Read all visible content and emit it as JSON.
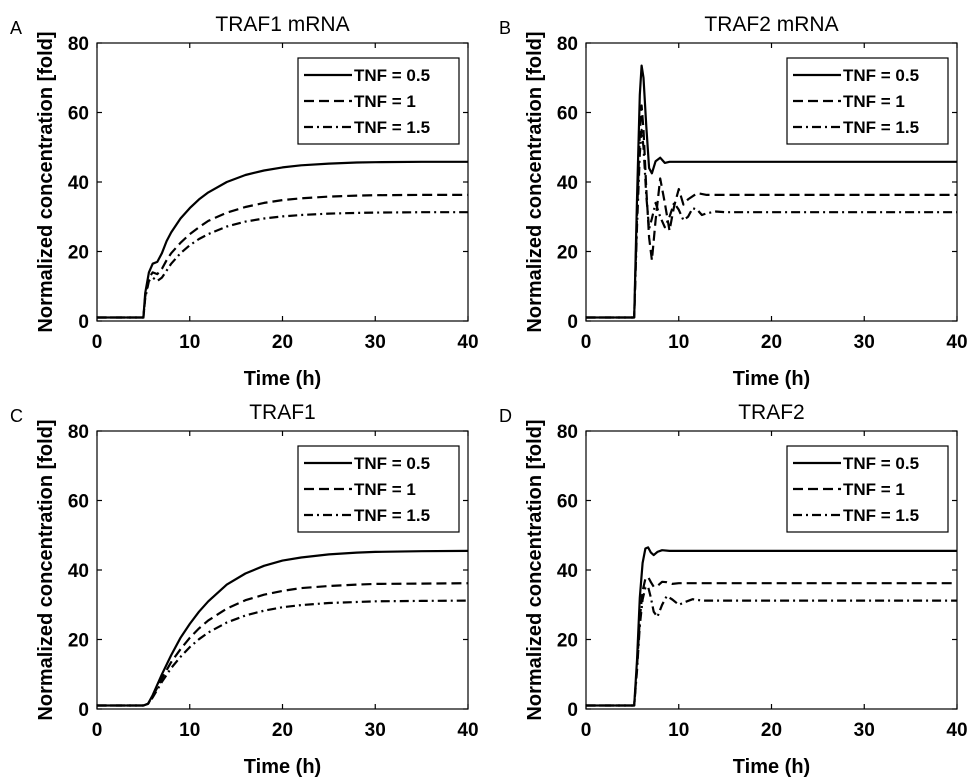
{
  "chart_data": [
    {
      "panel": "A",
      "title": "TRAF1 mRNA",
      "type": "line",
      "xlabel": "Time (h)",
      "ylabel": "Normalized concentration [fold]",
      "xlim": [
        0,
        40
      ],
      "ylim": [
        0,
        80
      ],
      "xticks": [
        "0",
        "10",
        "20",
        "30",
        "40"
      ],
      "yticks": [
        "0",
        "20",
        "40",
        "60",
        "80"
      ],
      "grid": false,
      "legend_position": "top-right",
      "series": [
        {
          "name": "TNF = 0.5",
          "style": "solid",
          "x": [
            0,
            5,
            5.2,
            5.6,
            6.0,
            6.5,
            7.0,
            7.5,
            8,
            9,
            10,
            11,
            12,
            14,
            16,
            18,
            20,
            22,
            25,
            28,
            30,
            35,
            40
          ],
          "y": [
            1,
            1,
            8,
            14,
            16.5,
            17,
            19.5,
            23,
            25.5,
            29.5,
            32.5,
            35,
            37,
            40,
            42,
            43.3,
            44.2,
            44.8,
            45.3,
            45.6,
            45.7,
            45.8,
            45.8
          ]
        },
        {
          "name": "TNF = 1",
          "style": "dashed",
          "x": [
            0,
            5,
            5.2,
            5.6,
            6.0,
            6.5,
            7.0,
            7.5,
            8,
            9,
            10,
            11,
            12,
            14,
            16,
            18,
            20,
            22,
            25,
            28,
            30,
            35,
            40
          ],
          "y": [
            1,
            1,
            7,
            12.5,
            14,
            13.5,
            15,
            17.5,
            19.5,
            22.5,
            25,
            27,
            28.8,
            31.2,
            32.8,
            34,
            34.8,
            35.3,
            35.8,
            36.1,
            36.2,
            36.3,
            36.3
          ]
        },
        {
          "name": "TNF = 1.5",
          "style": "dashdot",
          "x": [
            0,
            5,
            5.2,
            5.6,
            6.0,
            6.5,
            7.0,
            7.5,
            8,
            9,
            10,
            11,
            12,
            14,
            16,
            18,
            20,
            22,
            25,
            28,
            30,
            35,
            40
          ],
          "y": [
            1,
            1,
            6.5,
            11.5,
            12.5,
            11.5,
            12.5,
            14.5,
            16.5,
            19.5,
            21.8,
            23.6,
            25,
            27.2,
            28.6,
            29.5,
            30.1,
            30.5,
            30.9,
            31.1,
            31.2,
            31.3,
            31.3
          ]
        }
      ]
    },
    {
      "panel": "B",
      "title": "TRAF2 mRNA",
      "type": "line",
      "xlabel": "Time (h)",
      "ylabel": "Normalized concentration [fold]",
      "xlim": [
        0,
        40
      ],
      "ylim": [
        0,
        80
      ],
      "xticks": [
        "0",
        "10",
        "20",
        "30",
        "40"
      ],
      "yticks": [
        "0",
        "20",
        "40",
        "60",
        "80"
      ],
      "grid": false,
      "legend_position": "top-right",
      "series": [
        {
          "name": "TNF = 0.5",
          "style": "solid",
          "x": [
            0,
            5.2,
            5.5,
            5.8,
            6.0,
            6.2,
            6.5,
            6.8,
            7.1,
            7.5,
            8,
            8.5,
            9,
            10,
            40
          ],
          "y": [
            1,
            1,
            35,
            65,
            73.5,
            70,
            56,
            44,
            42.5,
            46,
            47,
            45.5,
            45.8,
            45.8,
            45.8
          ]
        },
        {
          "name": "TNF = 1",
          "style": "dashed",
          "x": [
            0,
            5.2,
            5.5,
            5.8,
            6.0,
            6.2,
            6.5,
            6.8,
            7.1,
            7.5,
            8,
            8.5,
            9,
            9.5,
            10,
            10.5,
            11,
            12,
            13,
            40
          ],
          "y": [
            1,
            1,
            30,
            54,
            62,
            55,
            38,
            24,
            17.5,
            29,
            41,
            34,
            26,
            33,
            38,
            33.5,
            35,
            36.8,
            36.3,
            36.3
          ]
        },
        {
          "name": "TNF = 1.5",
          "style": "dashdot",
          "x": [
            0,
            5.2,
            5.5,
            5.8,
            6.0,
            6.2,
            6.5,
            6.8,
            7.1,
            7.5,
            8,
            8.5,
            9,
            9.5,
            10,
            10.5,
            11,
            11.5,
            12,
            12.5,
            13,
            14,
            15,
            40
          ],
          "y": [
            1,
            1,
            27,
            48,
            55,
            50,
            36,
            26.5,
            29.5,
            34,
            30,
            27,
            30,
            34,
            32,
            29,
            30,
            32.5,
            32,
            30.5,
            31,
            31.5,
            31.3,
            31.3
          ]
        }
      ]
    },
    {
      "panel": "C",
      "title": "TRAF1",
      "type": "line",
      "xlabel": "Time (h)",
      "ylabel": "Normalized concentration [fold]",
      "xlim": [
        0,
        40
      ],
      "ylim": [
        0,
        80
      ],
      "xticks": [
        "0",
        "10",
        "20",
        "30",
        "40"
      ],
      "yticks": [
        "0",
        "20",
        "40",
        "60",
        "80"
      ],
      "grid": false,
      "legend_position": "top-right",
      "series": [
        {
          "name": "TNF = 0.5",
          "style": "solid",
          "x": [
            0,
            5,
            5.5,
            6,
            7,
            8,
            9,
            10,
            11,
            12,
            14,
            16,
            18,
            20,
            22,
            25,
            28,
            30,
            35,
            40
          ],
          "y": [
            1,
            1,
            1.5,
            4,
            10,
            15.5,
            20.5,
            24.5,
            28,
            31,
            35.8,
            39,
            41.2,
            42.7,
            43.6,
            44.5,
            45,
            45.2,
            45.4,
            45.5
          ]
        },
        {
          "name": "TNF = 1",
          "style": "dashed",
          "x": [
            0,
            5,
            5.5,
            6,
            7,
            8,
            9,
            10,
            11,
            12,
            14,
            16,
            18,
            20,
            22,
            25,
            28,
            30,
            35,
            40
          ],
          "y": [
            1,
            1,
            1.5,
            3.6,
            8.8,
            13.5,
            17.2,
            20.5,
            23.2,
            25.5,
            28.9,
            31.3,
            32.9,
            34,
            34.8,
            35.4,
            35.8,
            36,
            36.1,
            36.2
          ]
        },
        {
          "name": "TNF = 1.5",
          "style": "dashdot",
          "x": [
            0,
            5,
            5.5,
            6,
            7,
            8,
            9,
            10,
            11,
            12,
            14,
            16,
            18,
            20,
            22,
            25,
            28,
            30,
            35,
            40
          ],
          "y": [
            1,
            1,
            1.5,
            3.3,
            7.8,
            11.8,
            15,
            17.8,
            20.1,
            22,
            24.9,
            26.9,
            28.3,
            29.3,
            29.9,
            30.5,
            30.8,
            31,
            31.1,
            31.2
          ]
        }
      ]
    },
    {
      "panel": "D",
      "title": "TRAF2",
      "type": "line",
      "xlabel": "Time (h)",
      "ylabel": "Normalized concentration [fold]",
      "xlim": [
        0,
        40
      ],
      "ylim": [
        0,
        80
      ],
      "xticks": [
        "0",
        "10",
        "20",
        "30",
        "40"
      ],
      "yticks": [
        "0",
        "20",
        "40",
        "60",
        "80"
      ],
      "grid": false,
      "legend_position": "top-right",
      "series": [
        {
          "name": "TNF = 0.5",
          "style": "solid",
          "x": [
            0,
            5.2,
            5.5,
            5.8,
            6.1,
            6.4,
            6.7,
            7.0,
            7.3,
            7.7,
            8.2,
            9,
            40
          ],
          "y": [
            1,
            1,
            14,
            32,
            42,
            46.2,
            46.5,
            45,
            44.3,
            45.2,
            45.7,
            45.5,
            45.5
          ]
        },
        {
          "name": "TNF = 1",
          "style": "dashed",
          "x": [
            0,
            5.2,
            5.5,
            5.8,
            6.1,
            6.4,
            6.7,
            7.0,
            7.3,
            7.7,
            8.2,
            8.7,
            9.3,
            10,
            40
          ],
          "y": [
            1,
            1,
            12,
            26,
            34,
            37.5,
            38,
            36.5,
            35.2,
            35.4,
            36.6,
            36.5,
            36,
            36.2,
            36.2
          ]
        },
        {
          "name": "TNF = 1.5",
          "style": "dashdot",
          "x": [
            0,
            5.2,
            5.5,
            5.8,
            6.1,
            6.4,
            6.7,
            7.0,
            7.3,
            7.7,
            8.2,
            8.7,
            9.3,
            10,
            10.7,
            11.5,
            12.5,
            40
          ],
          "y": [
            1,
            1,
            11,
            24,
            31.5,
            35,
            35.2,
            32,
            28,
            26.5,
            30,
            32.5,
            31.5,
            30,
            30.8,
            31.6,
            31.2,
            31.2
          ]
        }
      ]
    }
  ]
}
